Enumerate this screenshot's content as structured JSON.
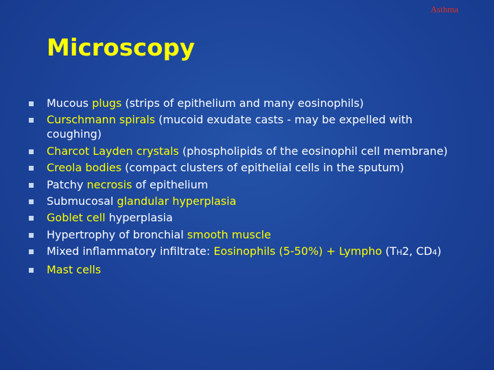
{
  "header": "Asthma",
  "title": "Microscopy",
  "bullets": [
    {
      "segments": [
        {
          "text": "Mucous ",
          "color": "#ffffff"
        },
        {
          "text": "plugs",
          "color": "#ffff00"
        },
        {
          "text": " (strips of epithelium and many eosinophils)",
          "color": "#ffffff"
        }
      ]
    },
    {
      "segments": [
        {
          "text": "Curschmann spirals",
          "color": "#ffff00"
        },
        {
          "text": " (mucoid exudate casts - may be expelled with coughing)",
          "color": "#ffffff"
        }
      ]
    },
    {
      "segments": [
        {
          "text": "Charcot Layden crystals",
          "color": "#ffff00"
        },
        {
          "text": " (phospholipids of the eosinophil cell membrane)",
          "color": "#ffffff"
        }
      ]
    },
    {
      "segments": [
        {
          "text": "Creola bodies",
          "color": "#ffff00"
        },
        {
          "text": " (compact clusters of epithelial cells in the sputum)",
          "color": "#ffffff"
        }
      ]
    },
    {
      "segments": [
        {
          "text": "Patchy ",
          "color": "#ffffff"
        },
        {
          "text": "necrosis",
          "color": "#ffff00"
        },
        {
          "text": " of epithelium",
          "color": "#ffffff"
        }
      ]
    },
    {
      "segments": [
        {
          "text": "Submucosal ",
          "color": "#ffffff"
        },
        {
          "text": "glandular hyperplasia",
          "color": "#ffff00"
        }
      ]
    },
    {
      "segments": [
        {
          "text": "Goblet cell",
          "color": "#ffff00"
        },
        {
          "text": " hyperplasia",
          "color": "#ffffff"
        }
      ]
    },
    {
      "segments": [
        {
          "text": "Hypertrophy of bronchial ",
          "color": "#ffffff"
        },
        {
          "text": "smooth muscle",
          "color": "#ffff00"
        }
      ]
    },
    {
      "segments": [
        {
          "text": "Mixed inflammatory infiltrate: ",
          "color": "#ffffff"
        },
        {
          "text": "Eosinophils (5-50%) + Lympho",
          "color": "#ffff00"
        },
        {
          "text": " (T",
          "color": "#ffffff"
        },
        {
          "text": "H",
          "color": "#ffffff",
          "size": "small"
        },
        {
          "text": "2, CD",
          "color": "#ffffff"
        },
        {
          "text": "4",
          "color": "#ffffff",
          "size": "small"
        },
        {
          "text": ")",
          "color": "#ffffff"
        }
      ]
    },
    {
      "segments": [
        {
          "text": "Mast cells",
          "color": "#ffff00"
        }
      ]
    }
  ]
}
